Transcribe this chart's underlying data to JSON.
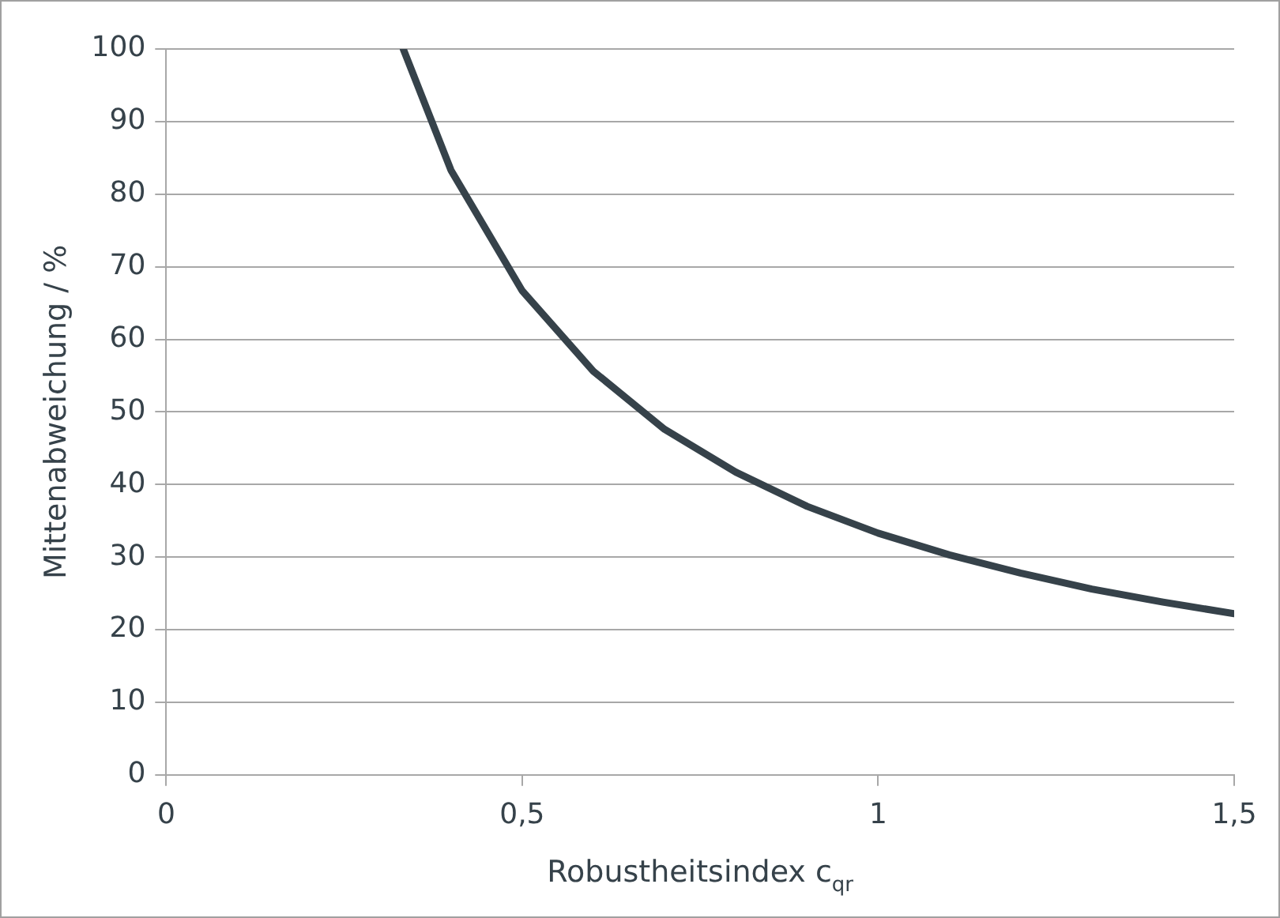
{
  "chart_data": {
    "type": "line",
    "xlabel": "Robustheitsindex c$_{qr}$",
    "ylabel": "Mittenabweichung / %",
    "x": [
      0.333,
      0.4,
      0.5,
      0.6,
      0.7,
      0.8,
      0.9,
      1,
      1.1,
      1.2,
      1.3,
      1.4,
      1.5
    ],
    "series": [
      {
        "color": "#36424a",
        "values": [
          100,
          83.3,
          66.7,
          55.6,
          47.6,
          41.7,
          37,
          33.3,
          30.3,
          27.8,
          25.6,
          23.8,
          22.2
        ]
      }
    ],
    "xlim": [
      0,
      1.5
    ],
    "xticks": [
      0,
      {
        "value": 0.5,
        "label": "0,5"
      },
      1,
      {
        "value": 1.5,
        "label": "1,5"
      }
    ],
    "ylim": [
      0,
      100
    ],
    "yticks": [
      0,
      10,
      20,
      30,
      40,
      50,
      60,
      70,
      80,
      90,
      100
    ],
    "grid": "y",
    "legend": false,
    "marker": "none",
    "line_style": "solid"
  }
}
